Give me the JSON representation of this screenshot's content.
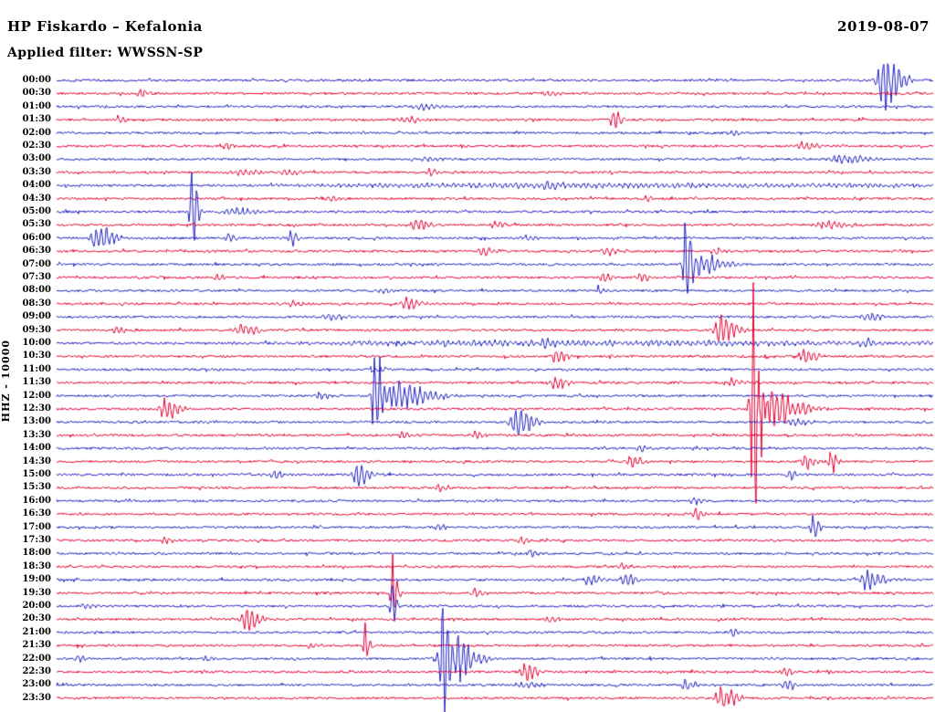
{
  "header": {
    "title": "HP Fiskardo – Kefalonia",
    "date": "2019-08-07",
    "filter": "Applied filter: WWSSN-SP"
  },
  "y_axis_label": "HHZ - 10000",
  "chart_data": {
    "type": "line",
    "subtype": "helicorder-seismogram",
    "title": "HP Fiskardo – Kefalonia",
    "date": "2019-08-07",
    "channel": "HHZ",
    "scale": 10000,
    "filter": "WWSSN-SP",
    "minutes_per_row": 30,
    "grid": false,
    "legend": "none",
    "trace_colors": {
      "even": "#2222c0",
      "odd": "#e40033"
    },
    "noise_amp": 1.2,
    "row_labels": [
      "00:00",
      "00:30",
      "01:00",
      "01:30",
      "02:00",
      "02:30",
      "03:00",
      "03:30",
      "04:00",
      "04:30",
      "05:00",
      "05:30",
      "06:00",
      "06:30",
      "07:00",
      "07:30",
      "08:00",
      "08:30",
      "09:00",
      "09:30",
      "10:00",
      "10:30",
      "11:00",
      "11:30",
      "12:00",
      "12:30",
      "13:00",
      "13:30",
      "14:00",
      "14:30",
      "15:00",
      "15:30",
      "16:00",
      "16:30",
      "17:00",
      "17:30",
      "18:00",
      "18:30",
      "19:00",
      "19:30",
      "20:00",
      "20:30",
      "21:00",
      "21:30",
      "22:00",
      "22:30",
      "23:00",
      "23:30"
    ],
    "events": [
      [
        0,
        0.943,
        30,
        8
      ],
      [
        1,
        0.095,
        5,
        4
      ],
      [
        1,
        0.56,
        3,
        6
      ],
      [
        2,
        0.41,
        3.5,
        10
      ],
      [
        3,
        0.07,
        4,
        3
      ],
      [
        3,
        0.4,
        4,
        8
      ],
      [
        3,
        0.635,
        13,
        3
      ],
      [
        4,
        0.77,
        3,
        6
      ],
      [
        5,
        0.194,
        5,
        4
      ],
      [
        5,
        0.85,
        3.5,
        8
      ],
      [
        6,
        0.42,
        3,
        8
      ],
      [
        6,
        0.893,
        5,
        14
      ],
      [
        7,
        0.21,
        3.5,
        10
      ],
      [
        7,
        0.26,
        3.5,
        10
      ],
      [
        7,
        0.425,
        5,
        4
      ],
      [
        8,
        0.5,
        2.2,
        300
      ],
      [
        8,
        0.56,
        3,
        8
      ],
      [
        9,
        0.31,
        3,
        6
      ],
      [
        9,
        0.672,
        5,
        3
      ],
      [
        10,
        0.154,
        78,
        2
      ],
      [
        10,
        0.2,
        4,
        12
      ],
      [
        11,
        0.41,
        6,
        6
      ],
      [
        11,
        0.5,
        3.5,
        5
      ],
      [
        11,
        0.875,
        3.5,
        14
      ],
      [
        12,
        0.045,
        15,
        8
      ],
      [
        12,
        0.196,
        6,
        3
      ],
      [
        12,
        0.267,
        8,
        3
      ],
      [
        12,
        0.535,
        3,
        6
      ],
      [
        13,
        0.487,
        4.5,
        6
      ],
      [
        13,
        0.628,
        4.5,
        6
      ],
      [
        13,
        0.75,
        3.5,
        6
      ],
      [
        14,
        0.717,
        42,
        3
      ],
      [
        14,
        0.73,
        10,
        14
      ],
      [
        15,
        0.183,
        4,
        4
      ],
      [
        15,
        0.623,
        5.5,
        4
      ],
      [
        15,
        0.665,
        4,
        5
      ],
      [
        16,
        0.37,
        3,
        6
      ],
      [
        16,
        0.618,
        6,
        3
      ],
      [
        17,
        0.27,
        3.5,
        6
      ],
      [
        17,
        0.399,
        6.5,
        6
      ],
      [
        18,
        0.31,
        3.5,
        8
      ],
      [
        18,
        0.925,
        4.5,
        8
      ],
      [
        19,
        0.068,
        3.5,
        4
      ],
      [
        19,
        0.21,
        7,
        8
      ],
      [
        19,
        0.758,
        15,
        8
      ],
      [
        20,
        0.5,
        2.5,
        320
      ],
      [
        20,
        0.39,
        5,
        6
      ],
      [
        20,
        0.555,
        4,
        6
      ],
      [
        20,
        0.92,
        6,
        10
      ],
      [
        21,
        0.57,
        7,
        5
      ],
      [
        21,
        0.852,
        8,
        6
      ],
      [
        22,
        0.363,
        3,
        5
      ],
      [
        23,
        0.569,
        8.5,
        5
      ],
      [
        23,
        0.77,
        5,
        5
      ],
      [
        24,
        0.3,
        4,
        5
      ],
      [
        24,
        0.363,
        55,
        3
      ],
      [
        24,
        0.385,
        14,
        18
      ],
      [
        25,
        0.123,
        11,
        7
      ],
      [
        25,
        0.795,
        130,
        4
      ],
      [
        25,
        0.81,
        20,
        16
      ],
      [
        26,
        0.524,
        13,
        9
      ],
      [
        26,
        0.84,
        4,
        8
      ],
      [
        27,
        0.394,
        3.5,
        5
      ],
      [
        27,
        0.477,
        3.5,
        5
      ],
      [
        28,
        0.665,
        3.5,
        5
      ],
      [
        29,
        0.654,
        7,
        5
      ],
      [
        29,
        0.854,
        9,
        4
      ],
      [
        29,
        0.883,
        12,
        3
      ],
      [
        30,
        0.248,
        5,
        4
      ],
      [
        30,
        0.342,
        11,
        7
      ],
      [
        30,
        0.836,
        6,
        3
      ],
      [
        31,
        0.435,
        3.5,
        5
      ],
      [
        32,
        0.727,
        3.5,
        4
      ],
      [
        33,
        0.729,
        5.5,
        4
      ],
      [
        34,
        0.435,
        3.5,
        5
      ],
      [
        34,
        0.863,
        13,
        3
      ],
      [
        35,
        0.123,
        3.5,
        4
      ],
      [
        35,
        0.53,
        3.5,
        5
      ],
      [
        36,
        0.54,
        4.5,
        4
      ],
      [
        37,
        0.644,
        3.5,
        4
      ],
      [
        38,
        0.607,
        6,
        5
      ],
      [
        38,
        0.649,
        8,
        5
      ],
      [
        38,
        0.925,
        11,
        7
      ],
      [
        39,
        0.383,
        38,
        2
      ],
      [
        39,
        0.477,
        5,
        4
      ],
      [
        40,
        0.03,
        4,
        4
      ],
      [
        40,
        0.383,
        22,
        2
      ],
      [
        41,
        0.217,
        14,
        6
      ],
      [
        41,
        0.56,
        3.5,
        5
      ],
      [
        42,
        0.769,
        5,
        4
      ],
      [
        43,
        0.29,
        4,
        4
      ],
      [
        43,
        0.352,
        20,
        2
      ],
      [
        44,
        0.024,
        6,
        3
      ],
      [
        44,
        0.17,
        4,
        4
      ],
      [
        44,
        0.44,
        45,
        2
      ],
      [
        44,
        0.446,
        28,
        12
      ],
      [
        45,
        0.534,
        9,
        6
      ],
      [
        45,
        0.83,
        5,
        4
      ],
      [
        46,
        0.53,
        3,
        10
      ],
      [
        46,
        0.717,
        6,
        5
      ],
      [
        46,
        0.831,
        5.5,
        5
      ],
      [
        47,
        0.758,
        13,
        7
      ]
    ]
  }
}
